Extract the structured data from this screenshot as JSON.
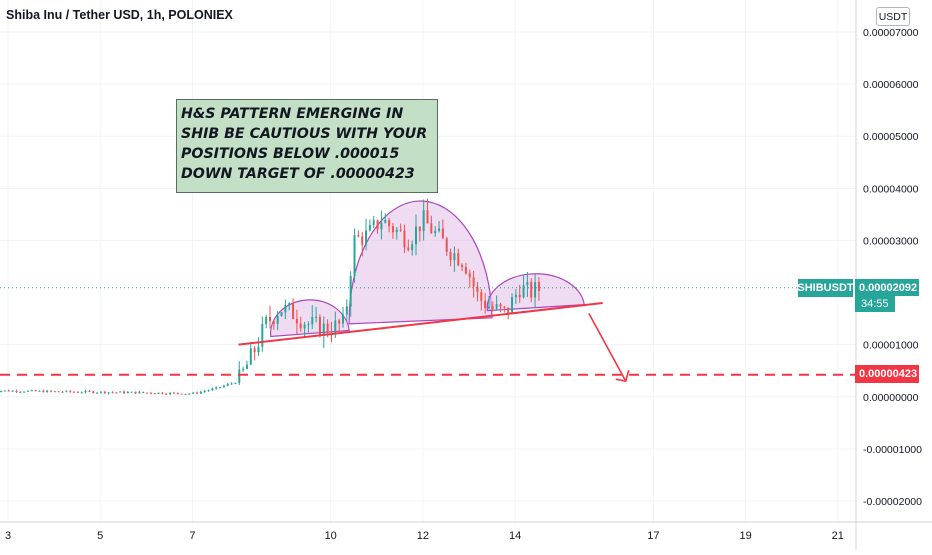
{
  "header": {
    "title": "Shiba Inu / Tether USD, 1h, POLONIEX",
    "currency_button": "USDT"
  },
  "annotation": {
    "lines": [
      "H&S PATTERN EMERGING IN",
      "SHIB BE CAUTIOUS WITH YOUR",
      "POSITIONS BELOW .000015",
      "DOWN TARGET OF .00000423"
    ]
  },
  "badges": {
    "symbol": "SHIBUSDT",
    "price": "0.00002092",
    "timer": "34:55",
    "target": "0.00000423"
  },
  "colors": {
    "up_candle": "#26a69a",
    "down_candle": "#ef5350",
    "pattern_fill": "#e1bee7",
    "pattern_stroke": "#ab47bc",
    "neckline": "#f23645",
    "price_line": "#26a69a",
    "note_bg": "#c3dfc6"
  },
  "chart_data": {
    "type": "candlestick",
    "title": "Shiba Inu / Tether USD, 1h, POLONIEX",
    "ylim": [
      -2.5e-06,
      7.3e-06
    ],
    "y_ticks": [
      "0.00007000",
      "0.00006000",
      "0.00005000",
      "0.00004000",
      "0.00003000",
      "0.00001000",
      "0.00000000",
      "-0.00001000",
      "-0.00002000"
    ],
    "x_ticks": [
      "3",
      "5",
      "7",
      "10",
      "12",
      "14",
      "17",
      "19",
      "21"
    ],
    "xlim": [
      3,
      21.9
    ],
    "last_price": 2.092e-06,
    "target_price": 4.23e-07,
    "grid": true,
    "price_path": [
      [
        2.6,
        1.2e-07
      ],
      [
        4.0,
        1e-07
      ],
      [
        5.0,
        9e-08
      ],
      [
        6.0,
        8e-08
      ],
      [
        7.0,
        6e-08
      ],
      [
        7.5,
        1.6e-07
      ],
      [
        8.0,
        3e-07
      ],
      [
        8.3,
        8e-07
      ],
      [
        8.6,
        1.4e-06
      ],
      [
        8.9,
        1.7e-06
      ],
      [
        9.2,
        1.6e-06
      ],
      [
        9.5,
        1.4e-06
      ],
      [
        9.9,
        1.3e-06
      ],
      [
        10.3,
        1.4e-06
      ],
      [
        10.5,
        3e-06
      ],
      [
        10.8,
        3.1e-06
      ],
      [
        11.1,
        3.4e-06
      ],
      [
        11.4,
        3.2e-06
      ],
      [
        11.7,
        3e-06
      ],
      [
        12.0,
        3.4e-06
      ],
      [
        12.3,
        3.1e-06
      ],
      [
        12.6,
        2.8e-06
      ],
      [
        12.9,
        2.6e-06
      ],
      [
        13.2,
        1.9e-06
      ],
      [
        13.5,
        1.7e-06
      ],
      [
        13.8,
        1.6e-06
      ],
      [
        14.1,
        2.1e-06
      ],
      [
        14.3,
        2e-06
      ],
      [
        14.6,
        2.09e-06
      ]
    ],
    "pattern": {
      "name": "Head and Shoulders",
      "left_shoulder": {
        "x": [
          8.7,
          10.4
        ],
        "peak": 1.8e-06
      },
      "head": {
        "x": [
          10.4,
          13.5
        ],
        "peak": 3.7e-06
      },
      "right_shoulder": {
        "x": [
          13.4,
          15.5
        ],
        "peak": 2.3e-06
      },
      "neckline": [
        [
          8.0,
          1e-06
        ],
        [
          15.9,
          1.8e-06
        ]
      ],
      "projection": [
        [
          15.6,
          1.6e-06
        ],
        [
          16.4,
          3e-07
        ]
      ]
    }
  }
}
